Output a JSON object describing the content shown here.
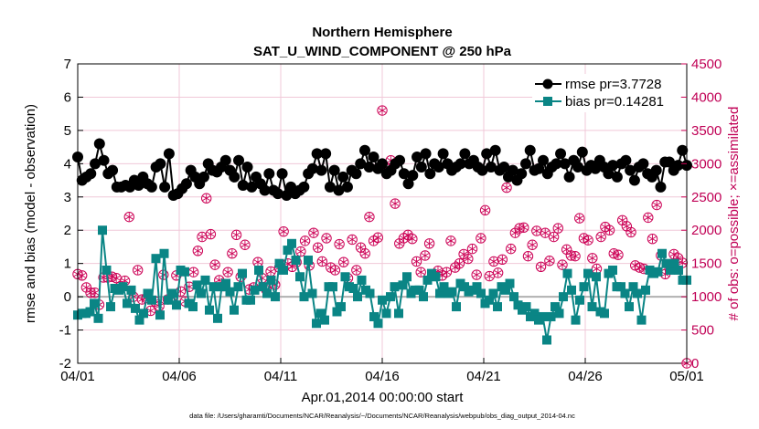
{
  "chart_data": {
    "type": "line",
    "title": "Northern Hemisphere",
    "subtitle": "SAT_U_WIND_COMPONENT @ 250 hPa",
    "xlabel": "Apr.01,2014 00:00:00 start",
    "ylabel": "rmse and bias (model - observation)",
    "ylabel_right": "# of obs: o=possible; ×=assimilated",
    "x_tick_labels": [
      "04/01",
      "04/06",
      "04/11",
      "04/16",
      "04/21",
      "04/26",
      "05/01"
    ],
    "y_ticks": [
      "-2",
      "-1",
      "0",
      "1",
      "2",
      "3",
      "4",
      "5",
      "6",
      "7"
    ],
    "y_right_ticks": [
      "0",
      "500",
      "1000",
      "1500",
      "2000",
      "2500",
      "3000",
      "3500",
      "4000",
      "4500"
    ],
    "ylim": [
      -2,
      7
    ],
    "ylim_right": [
      0,
      4500
    ],
    "xlim_days": [
      0,
      30
    ],
    "colors": {
      "rmse": "#000000",
      "bias": "#0a8585",
      "obs": "#cc0055",
      "zero_line": "#b0b0b0",
      "grid": "#f0c8d8"
    },
    "legend": [
      {
        "name": "rmse",
        "label": "rmse pr=3.7728"
      },
      {
        "name": "bias",
        "label": "bias pr=0.14281"
      }
    ],
    "footer": "data file: /Users/gharamti/Documents/NCAR/Reanalysis/~/Documents/NCAR/Reanalysis/webpub/obs_diag_output_2014-04.nc",
    "series": [
      {
        "name": "rmse",
        "values": [
          4.2,
          3.5,
          3.6,
          3.7,
          4.0,
          4.6,
          4.1,
          3.7,
          3.8,
          3.3,
          3.3,
          3.35,
          3.3,
          3.5,
          3.35,
          3.6,
          3.4,
          3.3,
          3.9,
          4.0,
          3.3,
          4.3,
          3.05,
          3.1,
          3.25,
          3.4,
          3.8,
          3.6,
          3.4,
          3.6,
          4.0,
          3.8,
          3.75,
          3.9,
          4.1,
          3.8,
          3.6,
          4.1,
          3.35,
          3.9,
          3.3,
          3.6,
          3.4,
          3.2,
          3.7,
          3.2,
          3.1,
          3.7,
          3.05,
          3.3,
          3.1,
          3.2,
          3.3,
          3.7,
          3.85,
          4.3,
          3.8,
          4.3,
          3.3,
          3.8,
          3.2,
          3.6,
          3.3,
          3.8,
          3.7,
          4.0,
          4.4,
          3.9,
          4.2,
          3.85,
          4.0,
          3.7,
          3.8,
          4.0,
          4.1,
          3.7,
          3.4,
          3.65,
          4.2,
          3.9,
          4.3,
          3.7,
          4.0,
          3.9,
          4.3,
          4.0,
          3.8,
          3.9,
          4.0,
          4.3,
          4.0,
          4.1,
          3.9,
          3.8,
          4.3,
          3.9,
          4.4,
          3.8,
          3.9,
          3.6,
          3.8,
          3.5,
          3.7,
          4.0,
          4.4,
          3.8,
          3.85,
          4.1,
          3.7,
          3.9,
          4.0,
          4.3,
          4.0,
          3.6,
          4.1,
          3.9,
          4.35,
          3.8,
          3.95,
          3.85,
          4.1,
          3.9,
          3.7,
          3.95,
          3.6,
          4.0,
          4.1,
          3.8,
          3.5,
          3.9,
          4.0,
          3.7,
          3.6,
          3.8,
          3.3,
          4.05,
          4.05,
          3.8,
          3.95,
          4.4,
          3.95
        ]
      },
      {
        "name": "bias",
        "values": [
          -0.55,
          -0.5,
          -0.5,
          -0.45,
          -0.2,
          -0.65,
          2.0,
          0.8,
          -0.3,
          0.25,
          0.2,
          0.3,
          -0.2,
          0.2,
          -0.35,
          -0.7,
          -0.5,
          0.1,
          -0.1,
          1.15,
          -0.55,
          1.3,
          -0.1,
          0.1,
          -0.25,
          0.8,
          0.75,
          -0.2,
          -0.3,
          0.35,
          0.1,
          0.5,
          -0.4,
          0.3,
          -0.65,
          0.3,
          0.4,
          0.15,
          -0.4,
          0.3,
          0.7,
          -0.1,
          -0.1,
          0.2,
          0.8,
          0.3,
          0.1,
          0.5,
          0.0,
          1.0,
          0.8,
          1.4,
          1.6,
          1.1,
          0.6,
          0.0,
          1.1,
          0.1,
          -0.8,
          -0.5,
          -0.7,
          0.3,
          0.3,
          -0.45,
          -0.3,
          0.6,
          0.3,
          0.25,
          0.0,
          0.5,
          0.2,
          0.1,
          -0.6,
          -0.8,
          -0.1,
          -0.5,
          0.0,
          0.3,
          -0.5,
          0.35,
          0.6,
          0.1,
          0.2,
          0.2,
          0.0,
          0.5,
          0.7,
          0.6,
          0.1,
          0.3,
          0.1,
          0.15,
          -0.3,
          0.4,
          0.3,
          0.15,
          0.2,
          0.3,
          0.1,
          -0.2,
          -0.1,
          0.1,
          -0.3,
          0.3,
          0.2,
          0.4,
          0.0,
          -0.25,
          -0.4,
          -0.3,
          -0.6,
          -0.5,
          -0.7,
          -0.6,
          -1.3,
          -0.6,
          -0.3,
          -0.5,
          0.0,
          0.7,
          0.2,
          -0.7,
          -0.1,
          0.3,
          0.7,
          -0.3,
          0.6,
          -0.45,
          -0.5,
          0.7,
          0.8,
          0.3,
          0.3,
          0.1,
          -0.3,
          0.3,
          0.1,
          -0.7,
          0.2,
          0.8,
          0.7,
          0.75,
          1.3,
          1.0,
          0.8,
          1.0,
          0.8,
          0.5,
          0.5
        ]
      },
      {
        "name": "obs_possible_assimilated",
        "values": [
          1340,
          1320,
          1140,
          1060,
          1060,
          880,
          1290,
          1290,
          1300,
          1280,
          1160,
          1240,
          2200,
          1000,
          1400,
          960,
          980,
          790,
          930,
          860,
          1330,
          960,
          990,
          1320,
          1080,
          930,
          1150,
          1370,
          1690,
          1900,
          2480,
          1940,
          1480,
          1250,
          1160,
          1370,
          1650,
          1930,
          1300,
          1780,
          1110,
          1140,
          1520,
          1280,
          1100,
          1380,
          1180,
          1440,
          1980,
          1500,
          1450,
          1520,
          1680,
          1840,
          1470,
          1960,
          1740,
          1530,
          1880,
          1440,
          1400,
          1790,
          1520,
          1280,
          1860,
          1400,
          1740,
          1650,
          2200,
          1840,
          1890,
          3800,
          2940,
          3050,
          2400,
          1800,
          1880,
          1930,
          1870,
          1530,
          1370,
          1620,
          1800,
          1320,
          1390,
          1320,
          1370,
          1840,
          1440,
          1500,
          1640,
          1570,
          1720,
          1330,
          1880,
          2300,
          1310,
          1530,
          1360,
          1560,
          2640,
          1720,
          1960,
          2030,
          2040,
          1610,
          1780,
          1990,
          1450,
          1960,
          1540,
          1900,
          2030,
          1480,
          1710,
          1620,
          1610,
          2180,
          1880,
          1850,
          1580,
          1420,
          1900,
          2050,
          2000,
          1650,
          1630,
          2150,
          2060,
          1970,
          1470,
          1440,
          1420,
          2190,
          1870,
          2380,
          1620,
          1340,
          1420,
          1640,
          1580,
          1510,
          0
        ]
      }
    ]
  }
}
